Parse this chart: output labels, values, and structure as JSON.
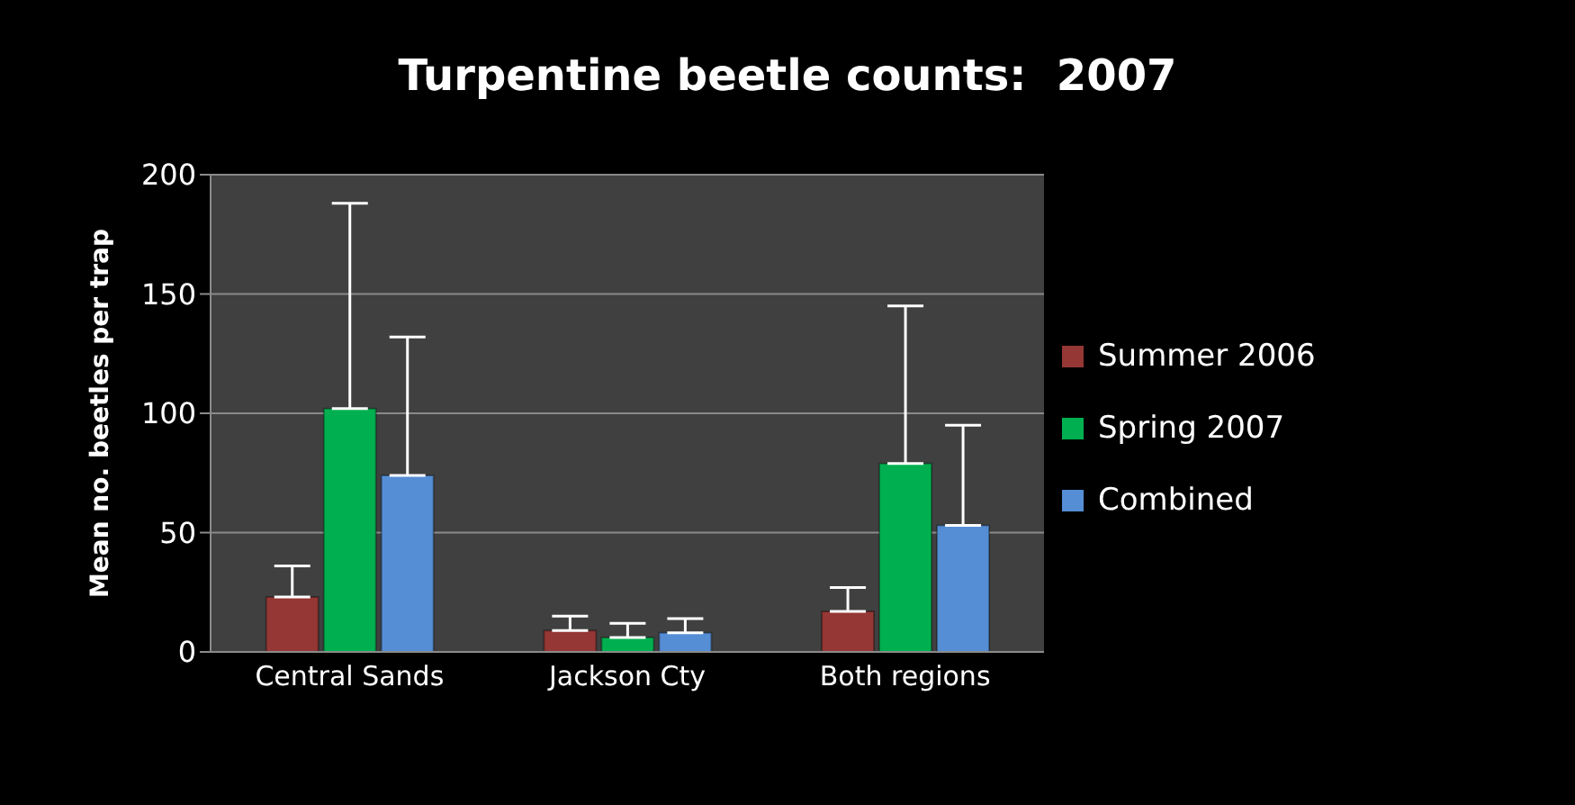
{
  "chart_data": {
    "type": "bar",
    "title": "Turpentine beetle counts:  2007",
    "ylabel": "Mean no. beetles per trap",
    "categories": [
      "Central Sands",
      "Jackson Cty",
      "Both regions"
    ],
    "series": [
      {
        "name": "Summer 2006",
        "color": "#953735",
        "values": [
          23,
          9,
          17
        ],
        "errors": [
          [
            23,
            36
          ],
          [
            9,
            15
          ],
          [
            17,
            27
          ]
        ]
      },
      {
        "name": "Spring 2007",
        "color": "#00b050",
        "values": [
          102,
          6,
          79
        ],
        "errors": [
          [
            102,
            188
          ],
          [
            6,
            12
          ],
          [
            79,
            145
          ]
        ]
      },
      {
        "name": "Combined",
        "color": "#558ed5",
        "values": [
          74,
          8,
          53
        ],
        "errors": [
          [
            74,
            132
          ],
          [
            8,
            14
          ],
          [
            53,
            95
          ]
        ]
      }
    ],
    "ylim": [
      0,
      200
    ],
    "yticks": [
      0,
      50,
      100,
      150,
      200
    ],
    "grid": "y",
    "legend": "right"
  }
}
